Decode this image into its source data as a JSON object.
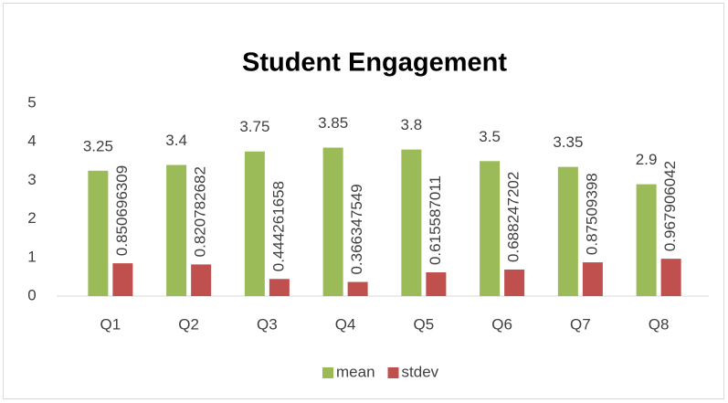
{
  "chart_data": {
    "type": "bar",
    "title": "Student Engagement",
    "categories": [
      "Q1",
      "Q2",
      "Q3",
      "Q4",
      "Q5",
      "Q6",
      "Q7",
      "Q8"
    ],
    "series": [
      {
        "name": "mean",
        "color": "#9bbb59",
        "values": [
          3.25,
          3.4,
          3.75,
          3.85,
          3.8,
          3.5,
          3.35,
          2.9
        ]
      },
      {
        "name": "stdev",
        "color": "#c0504d",
        "values": [
          0.850696309,
          0.820782682,
          0.444261658,
          0.366347549,
          0.615587011,
          0.688247202,
          0.87509398,
          0.967906042
        ]
      }
    ],
    "ylim": [
      0,
      5
    ],
    "yticks": [
      0,
      1,
      2,
      3,
      4,
      5
    ],
    "grid": false,
    "legend": "bottom"
  }
}
